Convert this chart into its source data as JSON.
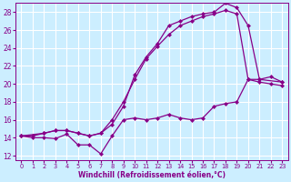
{
  "xlabel": "Windchill (Refroidissement éolien,°C)",
  "bg_color": "#cceeff",
  "grid_color": "#aaddcc",
  "line_color": "#880088",
  "xlim": [
    -0.5,
    23.5
  ],
  "ylim": [
    11.5,
    29.0
  ],
  "yticks": [
    12,
    14,
    16,
    18,
    20,
    22,
    24,
    26,
    28
  ],
  "xticks": [
    0,
    1,
    2,
    3,
    4,
    5,
    6,
    7,
    8,
    9,
    10,
    11,
    12,
    13,
    14,
    15,
    16,
    17,
    18,
    19,
    20,
    21,
    22,
    23
  ],
  "line1_x": [
    0,
    1,
    2,
    3,
    4,
    5,
    6,
    7,
    8,
    9,
    10,
    11,
    12,
    13,
    14,
    15,
    16,
    17,
    18,
    19,
    20,
    21,
    22,
    23
  ],
  "line1_y": [
    14.2,
    14.0,
    14.0,
    13.9,
    14.4,
    13.2,
    13.2,
    12.2,
    14.2,
    16.0,
    16.2,
    16.0,
    16.2,
    16.6,
    16.2,
    16.0,
    16.2,
    17.5,
    17.8,
    18.0,
    20.5,
    20.2,
    20.0,
    19.8
  ],
  "line2_x": [
    0,
    2,
    3,
    4,
    5,
    6,
    7,
    8,
    9,
    10,
    11,
    12,
    13,
    14,
    15,
    16,
    17,
    18,
    19,
    20,
    21,
    23
  ],
  "line2_y": [
    14.2,
    14.5,
    14.8,
    14.8,
    14.5,
    14.2,
    14.5,
    16.0,
    18.0,
    20.5,
    22.8,
    24.2,
    25.5,
    26.5,
    27.0,
    27.5,
    27.8,
    28.2,
    27.8,
    20.5,
    20.5,
    20.2
  ],
  "line3_x": [
    0,
    1,
    2,
    3,
    4,
    5,
    6,
    7,
    8,
    9,
    10,
    11,
    12,
    13,
    14,
    15,
    16,
    17,
    18,
    19,
    20,
    21,
    22,
    23
  ],
  "line3_y": [
    14.2,
    14.2,
    14.5,
    14.8,
    14.8,
    14.5,
    14.2,
    14.5,
    15.5,
    17.5,
    21.0,
    23.0,
    24.5,
    26.5,
    27.0,
    27.5,
    27.8,
    28.0,
    29.0,
    28.5,
    26.5,
    20.5,
    20.8,
    20.2
  ]
}
